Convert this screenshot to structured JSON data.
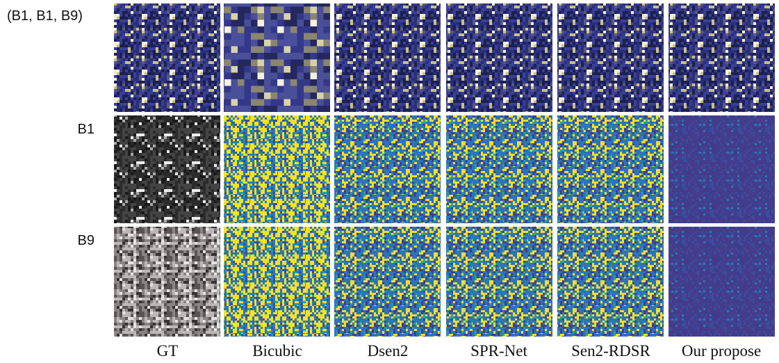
{
  "row_labels": [
    "(B1, B1, B9)",
    "B1",
    "B9"
  ],
  "column_labels": [
    "GT",
    "Bicubic",
    "Dsen2",
    "SPR-Net",
    "Sen2-RDSR",
    "Our propose"
  ]
}
